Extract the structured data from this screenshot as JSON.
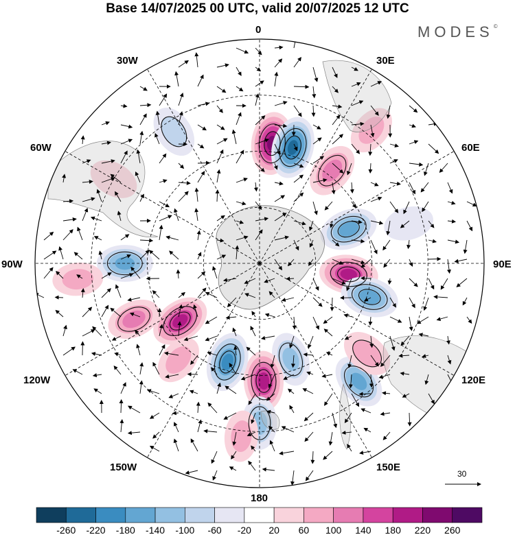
{
  "title": "Base 14/07/2025 00 UTC, valid 20/07/2025 12 UTC",
  "brand": "MODES",
  "brand_mark": "©",
  "longitude_labels": {
    "lon_0": "0",
    "lon_30e": "30E",
    "lon_60e": "60E",
    "lon_90e": "90E",
    "lon_120e": "120E",
    "lon_150e": "150E",
    "lon_180": "180",
    "lon_150w": "150W",
    "lon_120w": "120W",
    "lon_90w": "90W",
    "lon_60w": "60W",
    "lon_30w": "30W"
  },
  "reference_vector_label": "30",
  "colorbar": {
    "labels": [
      "-260",
      "-220",
      "-180",
      "-140",
      "-100",
      "-60",
      "-20",
      "20",
      "60",
      "100",
      "140",
      "180",
      "220",
      "260"
    ],
    "colors": [
      "#0f3e5d",
      "#1f6a98",
      "#3a8cc0",
      "#63a6d2",
      "#93c0e2",
      "#c0d4ec",
      "#e6e6f3",
      "#ffffff",
      "#f9d3dc",
      "#f4a9c3",
      "#e67cb2",
      "#d4449f",
      "#b01b86",
      "#7f0a6f",
      "#4e0a63"
    ]
  },
  "anomaly_centers": [
    {
      "lon": 6,
      "lat": -47,
      "value": 240
    },
    {
      "lon": 16,
      "lat": -47,
      "value": -230
    },
    {
      "lon": 38,
      "lat": -48,
      "value": 130
    },
    {
      "lon": 69,
      "lat": -56,
      "value": -170
    },
    {
      "lon": 97,
      "lat": -58,
      "value": 180
    },
    {
      "lon": 107,
      "lat": -49,
      "value": -170
    },
    {
      "lon": 140,
      "lat": -35,
      "value": -150
    },
    {
      "lon": 130,
      "lat": -40,
      "value": 90
    },
    {
      "lon": 162,
      "lat": -54,
      "value": -110
    },
    {
      "lon": 178,
      "lat": -48,
      "value": 200
    },
    {
      "lon": 198,
      "lat": -53,
      "value": -190
    },
    {
      "lon": 234,
      "lat": -55,
      "value": 190
    },
    {
      "lon": 246,
      "lat": -41,
      "value": 110
    },
    {
      "lon": 270,
      "lat": -42,
      "value": -140
    },
    {
      "lon": 180,
      "lat": -33,
      "value": -100
    },
    {
      "lon": 186,
      "lat": -28,
      "value": 70
    },
    {
      "lon": 220,
      "lat": -45,
      "value": 60
    },
    {
      "lon": 327,
      "lat": -34,
      "value": -90
    },
    {
      "lon": 300,
      "lat": -30,
      "value": 50
    },
    {
      "lon": 40,
      "lat": -28,
      "value": 60
    },
    {
      "lon": 75,
      "lat": -35,
      "value": -50
    },
    {
      "lon": 265,
      "lat": -25,
      "value": 60
    }
  ]
}
